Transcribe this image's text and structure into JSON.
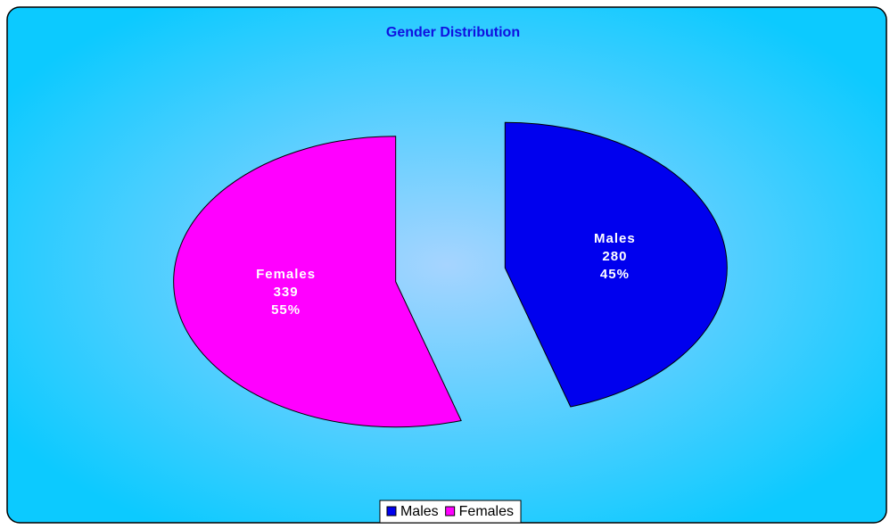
{
  "chart_data": {
    "type": "pie",
    "title": "Gender Distribution",
    "categories": [
      "Males",
      "Females"
    ],
    "values": [
      280,
      339
    ],
    "percent_labels": [
      "45%",
      "55%"
    ],
    "colors": [
      "#0000ee",
      "#ff00ff"
    ],
    "exploded": true,
    "legend": "bottom"
  }
}
